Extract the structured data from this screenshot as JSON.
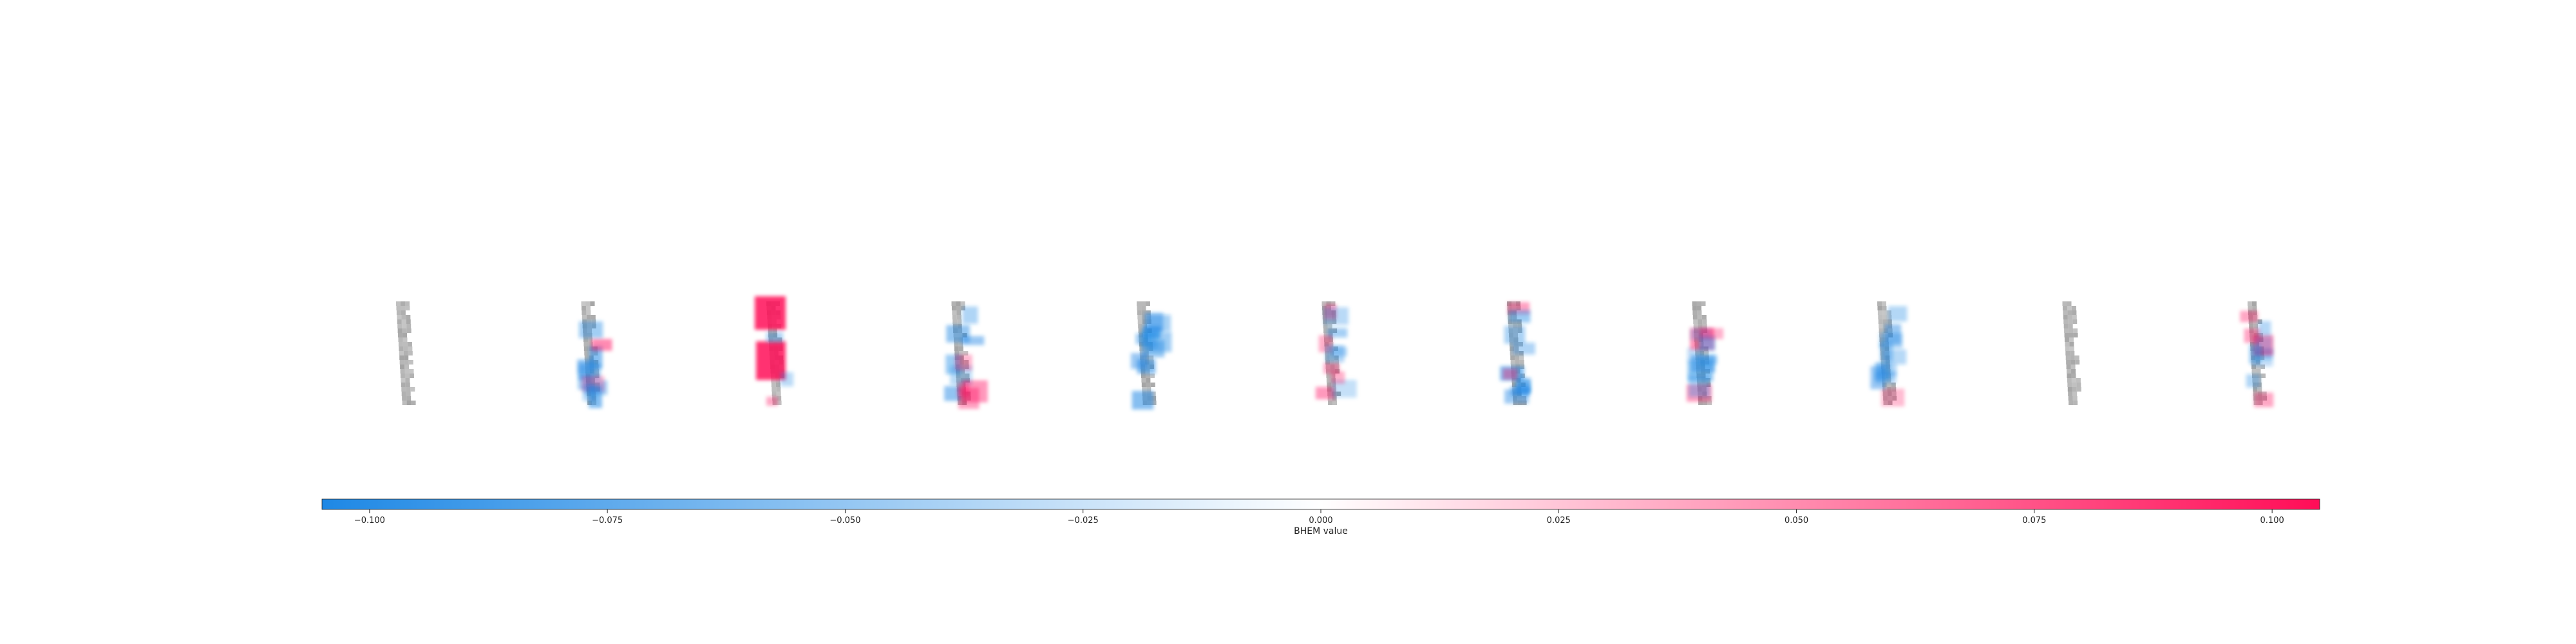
{
  "chart_data": {
    "type": "heatmap",
    "title": "",
    "panels": [
      {
        "index": 1,
        "dominant": "neutral"
      },
      {
        "index": 2,
        "dominant": "mixed-blue"
      },
      {
        "index": 3,
        "dominant": "strong-red"
      },
      {
        "index": 4,
        "dominant": "mixed"
      },
      {
        "index": 5,
        "dominant": "blue"
      },
      {
        "index": 6,
        "dominant": "mixed"
      },
      {
        "index": 7,
        "dominant": "mixed-blue"
      },
      {
        "index": 8,
        "dominant": "mixed-red"
      },
      {
        "index": 9,
        "dominant": "mixed-blue"
      },
      {
        "index": 10,
        "dominant": "neutral"
      },
      {
        "index": 11,
        "dominant": "mixed"
      }
    ],
    "colorbar": {
      "label": "BHEM value",
      "vmin": -0.105,
      "vmax": 0.105,
      "ticks": [
        -0.1,
        -0.075,
        -0.05,
        -0.025,
        0.0,
        0.025,
        0.05,
        0.075,
        0.1
      ],
      "tick_labels": [
        "−0.100",
        "−0.075",
        "−0.050",
        "−0.025",
        "0.000",
        "0.025",
        "0.050",
        "0.075",
        "0.100"
      ],
      "colormap": [
        "#1e88e5",
        "#ffffff",
        "#ff0d57"
      ]
    }
  }
}
